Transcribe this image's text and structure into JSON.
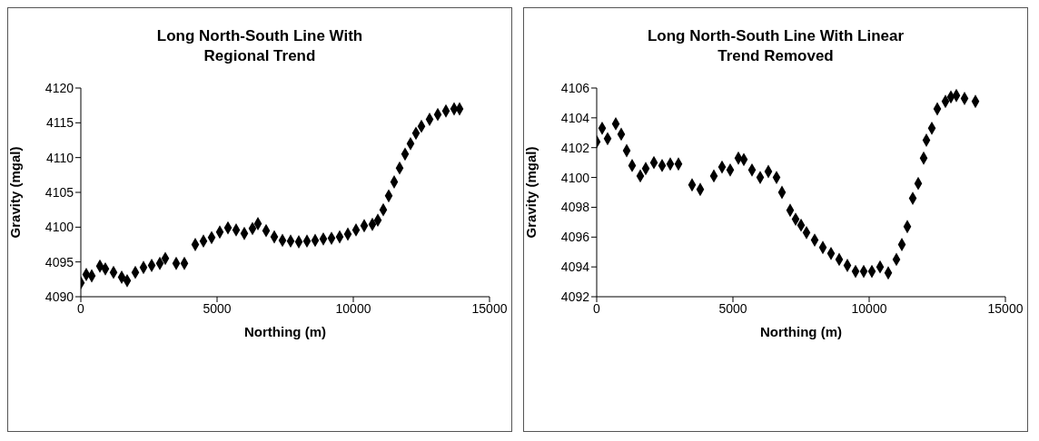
{
  "chart_data": [
    {
      "type": "scatter",
      "title": "Long North-South Line With Regional Trend",
      "xlabel": "Northing (m)",
      "ylabel": "Gravity (mgal)",
      "xlim": [
        0,
        15000
      ],
      "xticks": [
        0,
        5000,
        10000,
        15000
      ],
      "ylim": [
        4090,
        4120
      ],
      "yticks": [
        4090,
        4095,
        4100,
        4105,
        4110,
        4115,
        4120
      ],
      "marker": "diamond",
      "series": [
        {
          "color": "#000000",
          "x": [
            0,
            200,
            400,
            700,
            900,
            1200,
            1500,
            1700,
            2000,
            2300,
            2600,
            2900,
            3100,
            3500,
            3800,
            4200,
            4500,
            4800,
            5100,
            5400,
            5700,
            6000,
            6300,
            6500,
            6800,
            7100,
            7400,
            7700,
            8000,
            8300,
            8600,
            8900,
            9200,
            9500,
            9800,
            10100,
            10400,
            10700,
            10900,
            11100,
            11300,
            11500,
            11700,
            11900,
            12100,
            12300,
            12500,
            12800,
            13100,
            13400,
            13700,
            13900
          ],
          "values": [
            4092,
            4093.2,
            4093,
            4094.4,
            4094,
            4093.5,
            4092.8,
            4092.3,
            4093.5,
            4094.2,
            4094.5,
            4094.8,
            4095.5,
            4094.8,
            4094.8,
            4097.5,
            4098,
            4098.5,
            4099.3,
            4099.9,
            4099.6,
            4099.1,
            4099.8,
            4100.5,
            4099.5,
            4098.6,
            4098.1,
            4098,
            4097.9,
            4098,
            4098.1,
            4098.3,
            4098.4,
            4098.6,
            4099,
            4099.6,
            4100.2,
            4100.4,
            4101,
            4102.5,
            4104.5,
            4106.5,
            4108.5,
            4110.5,
            4112,
            4113.5,
            4114.5,
            4115.5,
            4116.2,
            4116.7,
            4117,
            4117
          ]
        }
      ]
    },
    {
      "type": "scatter",
      "title": "Long North-South Line With Linear Trend Removed",
      "xlabel": "Northing (m)",
      "ylabel": "Gravity (mgal)",
      "xlim": [
        0,
        15000
      ],
      "xticks": [
        0,
        5000,
        10000,
        15000
      ],
      "ylim": [
        4092,
        4106
      ],
      "yticks": [
        4092,
        4094,
        4096,
        4098,
        4100,
        4102,
        4104,
        4106
      ],
      "marker": "diamond",
      "series": [
        {
          "color": "#000000",
          "x": [
            0,
            200,
            400,
            700,
            900,
            1100,
            1300,
            1600,
            1800,
            2100,
            2400,
            2700,
            3000,
            3500,
            3800,
            4300,
            4600,
            4900,
            5200,
            5400,
            5700,
            6000,
            6300,
            6600,
            6800,
            7100,
            7300,
            7500,
            7700,
            8000,
            8300,
            8600,
            8900,
            9200,
            9500,
            9800,
            10100,
            10400,
            10700,
            11000,
            11200,
            11400,
            11600,
            11800,
            12000,
            12100,
            12300,
            12500,
            12800,
            13000,
            13200,
            13500,
            13900
          ],
          "values": [
            4102.4,
            4103.3,
            4102.6,
            4103.6,
            4102.9,
            4101.8,
            4100.8,
            4100.1,
            4100.6,
            4101,
            4100.8,
            4100.9,
            4100.9,
            4099.5,
            4099.2,
            4100.1,
            4100.7,
            4100.5,
            4101.3,
            4101.2,
            4100.5,
            4100,
            4100.4,
            4100,
            4099,
            4097.8,
            4097.2,
            4096.8,
            4096.3,
            4095.8,
            4095.3,
            4094.9,
            4094.5,
            4094.1,
            4093.7,
            4093.7,
            4093.7,
            4094,
            4093.6,
            4094.5,
            4095.5,
            4096.7,
            4098.6,
            4099.6,
            4101.3,
            4102.5,
            4103.3,
            4104.6,
            4105.1,
            4105.4,
            4105.5,
            4105.3,
            4105.1
          ]
        }
      ]
    }
  ]
}
